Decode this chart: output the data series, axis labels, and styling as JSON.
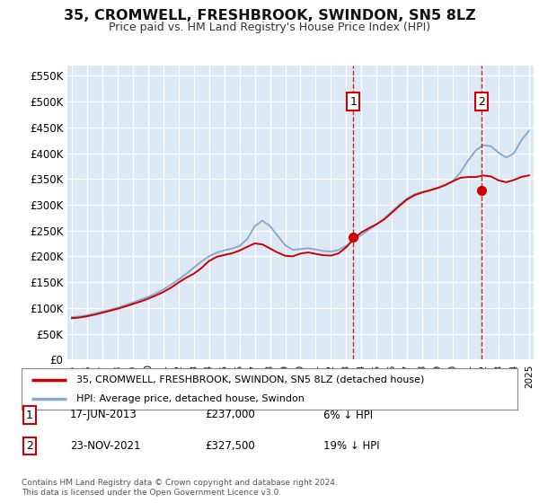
{
  "title": "35, CROMWELL, FRESHBROOK, SWINDON, SN5 8LZ",
  "subtitle": "Price paid vs. HM Land Registry's House Price Index (HPI)",
  "background_color": "#ffffff",
  "plot_bg_color": "#dce9f5",
  "grid_color": "#ffffff",
  "ylim": [
    0,
    570000
  ],
  "yticks": [
    0,
    50000,
    100000,
    150000,
    200000,
    250000,
    300000,
    350000,
    400000,
    450000,
    500000,
    550000
  ],
  "ytick_labels": [
    "£0",
    "£50K",
    "£100K",
    "£150K",
    "£200K",
    "£250K",
    "£300K",
    "£350K",
    "£400K",
    "£450K",
    "£500K",
    "£550K"
  ],
  "sale1_x": 2013.46,
  "sale1_price": 237000,
  "sale2_x": 2021.9,
  "sale2_price": 327500,
  "legend_house": "35, CROMWELL, FRESHBROOK, SWINDON, SN5 8LZ (detached house)",
  "legend_hpi": "HPI: Average price, detached house, Swindon",
  "annot1_date": "17-JUN-2013",
  "annot1_price": "£237,000",
  "annot1_pct": "6% ↓ HPI",
  "annot2_date": "23-NOV-2021",
  "annot2_price": "£327,500",
  "annot2_pct": "19% ↓ HPI",
  "footer": "Contains HM Land Registry data © Crown copyright and database right 2024.\nThis data is licensed under the Open Government Licence v3.0.",
  "house_line_color": "#cc0000",
  "hpi_line_color": "#88aacc",
  "dashed_line_color": "#cc0000",
  "box_edge_color": "#cc0000",
  "years_hpi": [
    1995,
    1995.5,
    1996,
    1996.5,
    1997,
    1997.5,
    1998,
    1998.5,
    1999,
    1999.5,
    2000,
    2000.5,
    2001,
    2001.5,
    2002,
    2002.5,
    2003,
    2003.5,
    2004,
    2004.5,
    2005,
    2005.5,
    2006,
    2006.5,
    2007,
    2007.5,
    2008,
    2008.5,
    2009,
    2009.5,
    2010,
    2010.5,
    2011,
    2011.5,
    2012,
    2012.5,
    2013,
    2013.5,
    2014,
    2014.5,
    2015,
    2015.5,
    2016,
    2016.5,
    2017,
    2017.5,
    2018,
    2018.5,
    2019,
    2019.5,
    2020,
    2020.5,
    2021,
    2021.5,
    2022,
    2022.5,
    2023,
    2023.5,
    2024,
    2024.5,
    2025
  ],
  "hpi_vals": [
    82000,
    83000,
    86000,
    89000,
    93000,
    97000,
    100000,
    105000,
    111000,
    116000,
    121000,
    128000,
    136000,
    144000,
    156000,
    165000,
    179000,
    190000,
    202000,
    208000,
    212000,
    215000,
    219000,
    224000,
    267000,
    278000,
    260000,
    240000,
    218000,
    208000,
    215000,
    218000,
    213000,
    210000,
    208000,
    210000,
    221000,
    230000,
    242000,
    252000,
    262000,
    272000,
    288000,
    300000,
    314000,
    322000,
    325000,
    328000,
    332000,
    337000,
    342000,
    360000,
    388000,
    408000,
    420000,
    418000,
    400000,
    385000,
    390000,
    430000,
    450000
  ],
  "house_vals": [
    80000,
    81000,
    84000,
    87000,
    91000,
    95000,
    98000,
    103000,
    108000,
    112000,
    118000,
    124000,
    131000,
    138000,
    150000,
    160000,
    165000,
    175000,
    195000,
    200000,
    203000,
    205000,
    211000,
    217000,
    230000,
    225000,
    215000,
    207000,
    200000,
    196000,
    208000,
    210000,
    204000,
    202000,
    200000,
    203000,
    215000,
    237000,
    248000,
    255000,
    262000,
    270000,
    285000,
    298000,
    312000,
    320000,
    324000,
    328000,
    332000,
    338000,
    345000,
    355000,
    355000,
    350000,
    360000,
    358000,
    345000,
    340000,
    348000,
    355000,
    358000
  ]
}
